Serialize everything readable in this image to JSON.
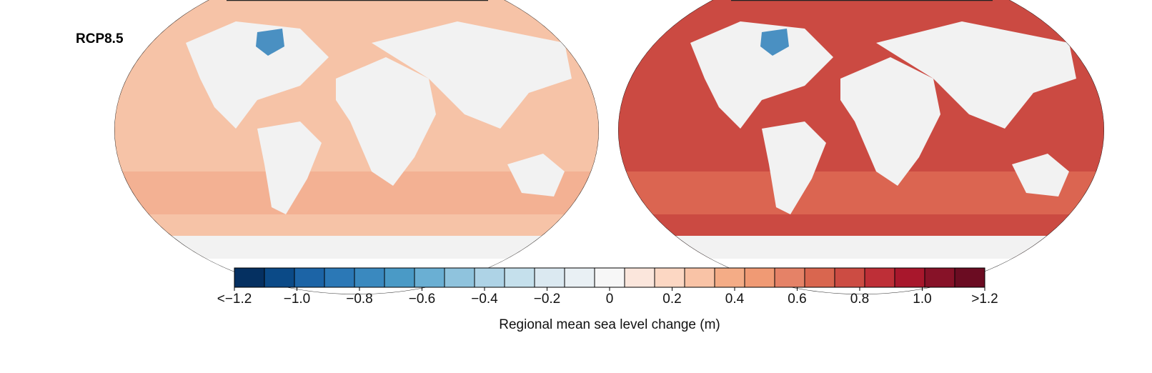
{
  "row_label": "RCP8.5",
  "maps": [
    {
      "ocean_color": "#f6c3a7",
      "ocean_alt": "#f3ad8f",
      "land_color": "#f2f2f2"
    },
    {
      "ocean_color": "#cb4a42",
      "ocean_alt": "#de6b55",
      "land_color": "#f2f2f2"
    }
  ],
  "colorbar": {
    "title": "Regional mean sea level change (m)",
    "ticks": [
      "<−1.2",
      "−1.0",
      "−0.8",
      "−0.6",
      "−0.4",
      "−0.2",
      "0",
      "0.2",
      "0.4",
      "0.6",
      "0.8",
      "1.0",
      ">1.2"
    ],
    "colors": [
      "#053061",
      "#0b4a87",
      "#1c64a6",
      "#2b78b6",
      "#3a89bf",
      "#4a9ac6",
      "#6aafd3",
      "#8fc3dd",
      "#aed3e6",
      "#c5e0ec",
      "#dbe9f1",
      "#e9f0f4",
      "#f7f7f7",
      "#fbe6dc",
      "#fcd7c3",
      "#f9c3a6",
      "#f4ac86",
      "#f09a74",
      "#e58267",
      "#d9664f",
      "#cc4c43",
      "#be2f37",
      "#a8172c",
      "#871228",
      "#6b0c22"
    ]
  }
}
